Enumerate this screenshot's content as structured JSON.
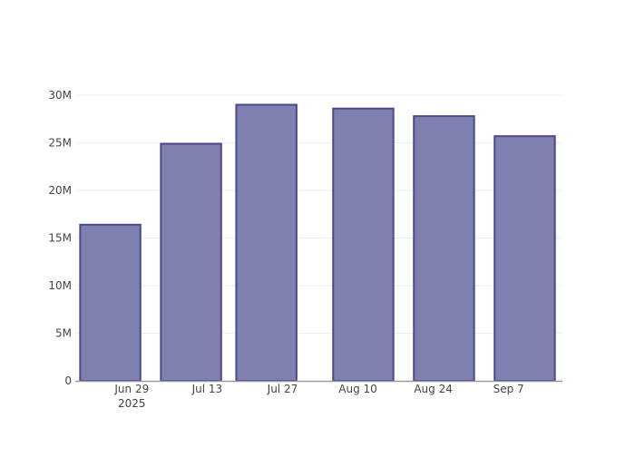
{
  "chart_data": {
    "type": "bar",
    "title": "",
    "xlabel": "",
    "ylabel": "",
    "x": [
      "2025-06-25",
      "2025-07-10",
      "2025-07-24",
      "2025-08-11",
      "2025-08-26",
      "2025-09-10"
    ],
    "values": [
      16400000,
      24900000,
      29000000,
      28600000,
      27800000,
      25700000
    ],
    "xlim": [
      "2025-06-18T12:00",
      "2025-09-17"
    ],
    "ylim": [
      0,
      30000000
    ],
    "x_ticks": [
      {
        "date": "2025-06-29",
        "label": "Jun 29",
        "sublabel": "2025"
      },
      {
        "date": "2025-07-13",
        "label": "Jul 13"
      },
      {
        "date": "2025-07-27",
        "label": "Jul 27"
      },
      {
        "date": "2025-08-10",
        "label": "Aug 10"
      },
      {
        "date": "2025-08-24",
        "label": "Aug 24"
      },
      {
        "date": "2025-09-07",
        "label": "Sep 7"
      }
    ],
    "y_ticks": [
      {
        "value": 0,
        "label": "0"
      },
      {
        "value": 5000000,
        "label": "5M"
      },
      {
        "value": 10000000,
        "label": "10M"
      },
      {
        "value": 15000000,
        "label": "15M"
      },
      {
        "value": 20000000,
        "label": "20M"
      },
      {
        "value": 25000000,
        "label": "25M"
      },
      {
        "value": 30000000,
        "label": "30M"
      }
    ],
    "grid": true,
    "legend": "none",
    "colors": {
      "fill": "#7f7fb0",
      "stroke": "#4b4b8c",
      "grid": "#eeeeee",
      "axis": "#999999"
    }
  }
}
